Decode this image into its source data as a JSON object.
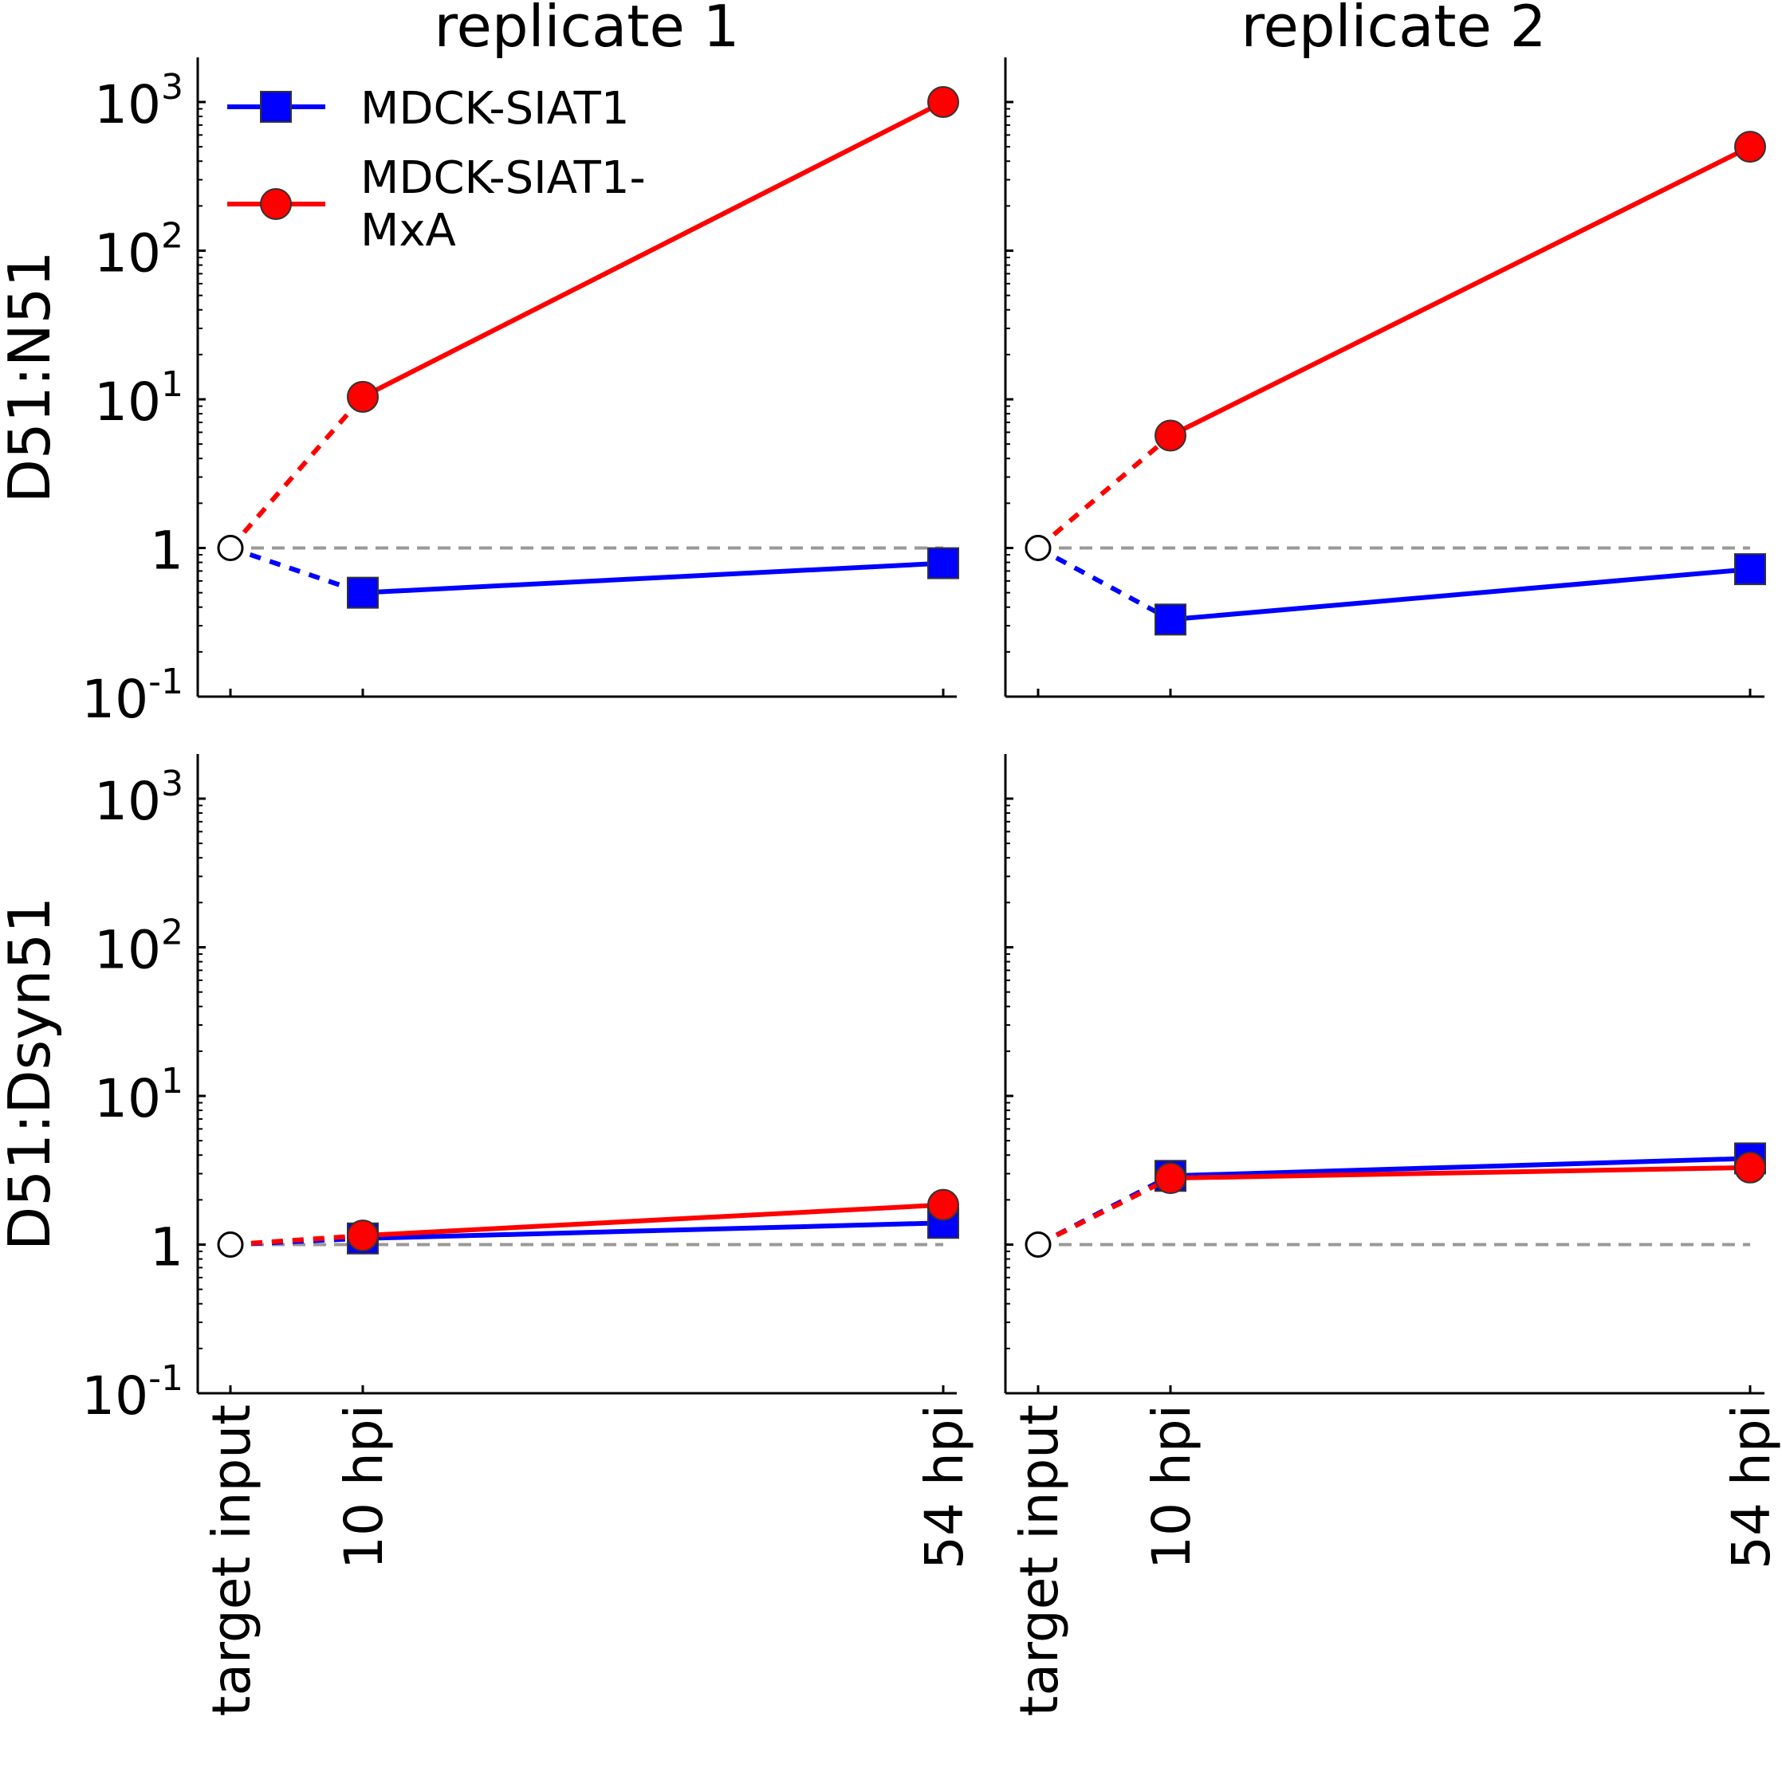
{
  "chart_data": {
    "type": "line",
    "layout": "2x2 grid",
    "column_titles": [
      "replicate 1",
      "replicate 2"
    ],
    "row_labels": [
      "D51:N51",
      "D51:Dsyn51"
    ],
    "categories": [
      "target input",
      "10 hpi",
      "54 hpi"
    ],
    "y_scale": "log",
    "ylim": [
      0.1,
      2000
    ],
    "y_ticks": [
      {
        "value": 0.1,
        "base": "10",
        "exp": "-1"
      },
      {
        "value": 1,
        "base": "1",
        "exp": ""
      },
      {
        "value": 10,
        "base": "10",
        "exp": "1"
      },
      {
        "value": 100,
        "base": "10",
        "exp": "2"
      },
      {
        "value": 1000,
        "base": "10",
        "exp": "3"
      }
    ],
    "reference_line": {
      "y": 1,
      "style": "dashed",
      "color": "#999999"
    },
    "legend": {
      "placement": "top-left of upper-left panel",
      "entries": [
        {
          "lines": [
            "MDCK-SIAT1"
          ],
          "color": "#0000ff",
          "marker": "square"
        },
        {
          "lines": [
            "MDCK-SIAT1-",
            "MxA"
          ],
          "color": "#ff0000",
          "marker": "circle"
        }
      ]
    },
    "input_marker": {
      "style": "open circle",
      "value": 1
    },
    "segment_styles": {
      "input_to_first": "dashed",
      "later": "solid"
    },
    "series_colors": {
      "MDCK-SIAT1": "#0000ff",
      "MDCK-SIAT1-MxA": "#ff0000"
    },
    "panels": [
      {
        "row": 0,
        "col": 0,
        "series": [
          {
            "key": "MDCK-SIAT1",
            "marker": "square",
            "color": "#0000ff",
            "values": [
              1,
              0.5,
              0.79
            ]
          },
          {
            "key": "MDCK-SIAT1-MxA",
            "marker": "circle",
            "color": "#ff0000",
            "values": [
              1,
              10.4,
              1000
            ]
          }
        ]
      },
      {
        "row": 0,
        "col": 1,
        "series": [
          {
            "key": "MDCK-SIAT1",
            "marker": "square",
            "color": "#0000ff",
            "values": [
              1,
              0.33,
              0.72
            ]
          },
          {
            "key": "MDCK-SIAT1-MxA",
            "marker": "circle",
            "color": "#ff0000",
            "values": [
              1,
              5.7,
              500
            ]
          }
        ]
      },
      {
        "row": 1,
        "col": 0,
        "series": [
          {
            "key": "MDCK-SIAT1",
            "marker": "square",
            "color": "#0000ff",
            "values": [
              1,
              1.1,
              1.4
            ]
          },
          {
            "key": "MDCK-SIAT1-MxA",
            "marker": "circle",
            "color": "#ff0000",
            "values": [
              1,
              1.15,
              1.85
            ]
          }
        ]
      },
      {
        "row": 1,
        "col": 1,
        "series": [
          {
            "key": "MDCK-SIAT1",
            "marker": "square",
            "color": "#0000ff",
            "values": [
              1,
              2.9,
              3.8
            ]
          },
          {
            "key": "MDCK-SIAT1-MxA",
            "marker": "circle",
            "color": "#ff0000",
            "values": [
              1,
              2.8,
              3.3
            ]
          }
        ]
      }
    ]
  }
}
